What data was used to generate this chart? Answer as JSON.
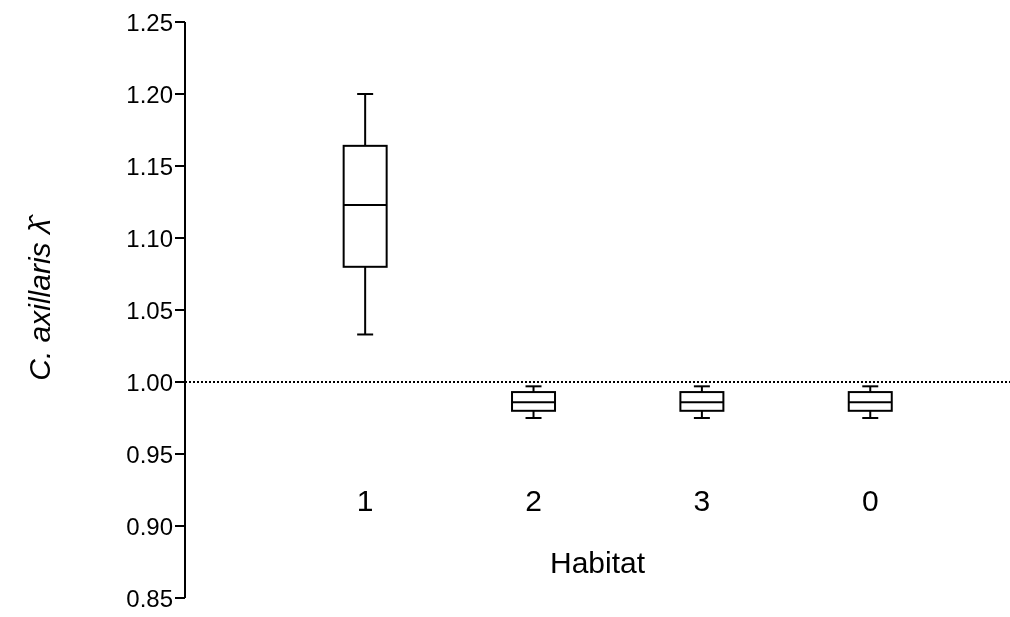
{
  "chart_data": {
    "type": "box",
    "categories": [
      "1",
      "2",
      "3",
      "0"
    ],
    "xlabel": "Habitat",
    "ylabel": "C. axillaris λ̂",
    "color": "#000000",
    "boxes": [
      {
        "low": 1.033,
        "q1": 1.08,
        "median": 1.123,
        "q3": 1.164,
        "high": 1.2
      },
      {
        "low": 0.975,
        "q1": 0.98,
        "median": 0.986,
        "q3": 0.993,
        "high": 0.997
      },
      {
        "low": 0.975,
        "q1": 0.98,
        "median": 0.986,
        "q3": 0.993,
        "high": 0.997
      },
      {
        "low": 0.975,
        "q1": 0.98,
        "median": 0.986,
        "q3": 0.993,
        "high": 0.997
      }
    ],
    "ylim": [
      0.85,
      1.25
    ],
    "yticks": [
      0.85,
      {
        "value": 0.9,
        "label": "0.90"
      },
      0.95,
      {
        "value": 1.0,
        "label": "1.00"
      },
      1.05,
      {
        "value": 1.1,
        "label": "1.10"
      },
      1.15,
      {
        "value": 1.2,
        "label": "1.20"
      },
      1.25
    ],
    "ref_lines": [
      {
        "axis": "y",
        "value": 1.0,
        "line_style": "dotted"
      }
    ],
    "grid": false
  }
}
